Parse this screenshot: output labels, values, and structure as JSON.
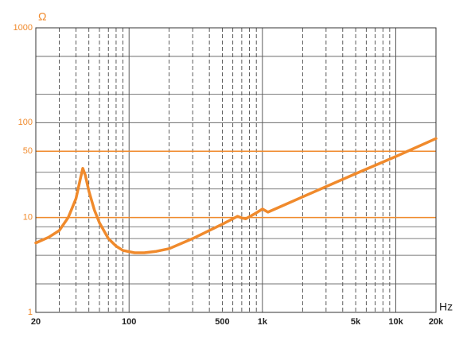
{
  "chart_data": {
    "type": "line",
    "y_label": "Ω",
    "x_label": "Hz",
    "x": [
      20,
      25,
      30,
      35,
      40,
      43,
      45,
      47,
      50,
      55,
      60,
      70,
      80,
      90,
      110,
      130,
      160,
      200,
      300,
      400,
      500,
      600,
      650,
      700,
      750,
      800,
      900,
      1000,
      1100,
      2000,
      5000,
      10000,
      20000
    ],
    "values": [
      5.4,
      6.2,
      7.3,
      10,
      15.8,
      25,
      33,
      28,
      19,
      12,
      8.8,
      6,
      5,
      4.5,
      4.25,
      4.25,
      4.4,
      4.7,
      6,
      7.3,
      8.5,
      9.7,
      10.3,
      9.9,
      9.7,
      10.2,
      11.2,
      12.3,
      11.4,
      16.5,
      29,
      44,
      68
    ],
    "color": "#f08a2c",
    "xlim": [
      20,
      20000
    ],
    "ylim": [
      1,
      1000
    ],
    "xscale": "log",
    "yscale": "log",
    "xticks": [
      20,
      100,
      500,
      {
        "value": 1000,
        "label": "1k"
      },
      {
        "value": 5000,
        "label": "5k"
      },
      {
        "value": 10000,
        "label": "10k"
      },
      {
        "value": 20000,
        "label": "20k"
      }
    ],
    "yticks": [
      1,
      10,
      50,
      100,
      1000
    ],
    "xgrid": [
      20,
      30,
      40,
      50,
      60,
      70,
      80,
      90,
      100,
      200,
      300,
      400,
      500,
      600,
      700,
      800,
      900,
      1000,
      2000,
      3000,
      4000,
      5000,
      6000,
      7000,
      8000,
      9000,
      10000,
      20000
    ],
    "ygrid": [
      2,
      4,
      6,
      8,
      10,
      20,
      30,
      50,
      100,
      200,
      500,
      1000
    ],
    "highlight_lines": [
      50,
      10
    ],
    "grid": true
  }
}
